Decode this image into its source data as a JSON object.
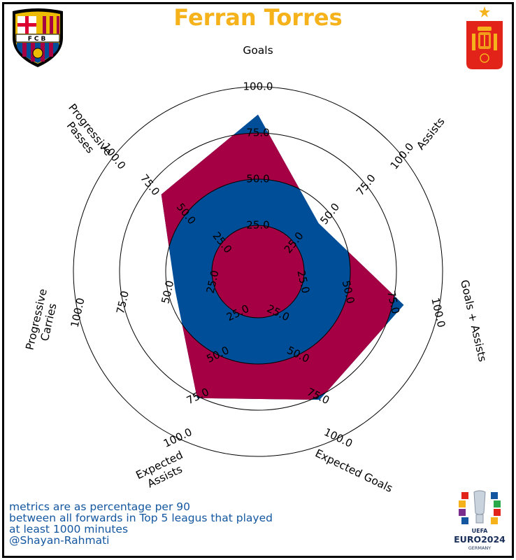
{
  "title": "Ferran Torres",
  "colors": {
    "title": "#f5b21a",
    "fill_blue": "#004d98",
    "fill_red": "#a50044",
    "footnote": "#1457a0"
  },
  "footnote": {
    "lines": [
      "metrics are as percentage per 90",
      "between all forwards in Top 5 leagus that played",
      "at least 1000 minutes",
      "@Shayan-Rahmati"
    ]
  },
  "logos": {
    "left": {
      "icon": "fc-barcelona-crest",
      "text": "FCB"
    },
    "right": {
      "icon": "spain-federation-crest"
    },
    "bottom_right": {
      "icon": "uefa-euro-2024-logo",
      "line1": "UEFA",
      "line2": "EURO2024",
      "line3": "GERMANY"
    }
  },
  "chart_data": {
    "type": "radar",
    "title": "Ferran Torres",
    "categories": [
      "Goals",
      "Assists",
      "Goals + Assists",
      "Expected Goals",
      "Expected Assists",
      "Progressive Carries",
      "Progressive Passes"
    ],
    "category_labels": [
      "Goals",
      "Assists",
      "Goals + Assists",
      "Expected Goals",
      "Expected\nAssists",
      "Progressive\nCarries",
      "Progressive\nPasses"
    ],
    "series": [
      {
        "values": [
          85,
          42,
          81,
          77,
          76,
          46,
          67
        ]
      }
    ],
    "rlim": [
      0,
      100
    ],
    "ring_ticks": [
      25,
      50,
      75,
      100
    ],
    "ring_tick_labels": [
      "25.0",
      "50.0",
      "75.0",
      "100.0"
    ],
    "background_bands": "alternating red/blue concentric bands",
    "grid": true
  }
}
